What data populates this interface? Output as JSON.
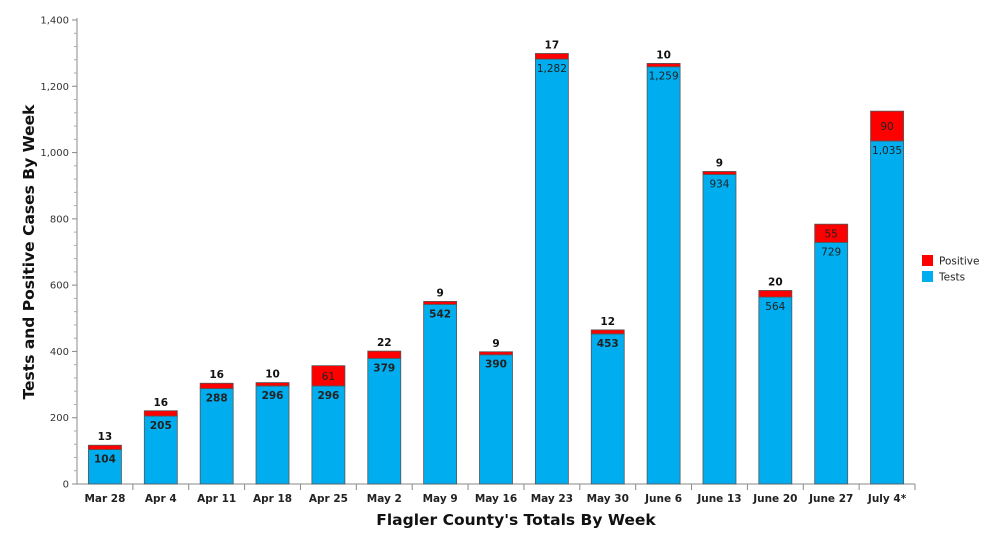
{
  "chart_data": {
    "type": "bar",
    "stacked": true,
    "title": "",
    "xlabel": "Flagler County's Totals By Week",
    "ylabel": "Tests and Positive Cases By Week",
    "ylim": [
      0,
      1400
    ],
    "yticks": [
      "0",
      "200",
      "400",
      "600",
      "800",
      "1,000",
      "1,200",
      "1,400"
    ],
    "ytick_values": [
      0,
      200,
      400,
      600,
      800,
      1000,
      1200,
      1400
    ],
    "categories": [
      "Mar 28",
      "Apr 4",
      "Apr 11",
      "Apr 18",
      "Apr 25",
      "May 2",
      "May 9",
      "May 16",
      "May 23",
      "May 30",
      "June 6",
      "June 13",
      "June 20",
      "June 27",
      "July 4*"
    ],
    "series": [
      {
        "name": "Tests",
        "color": "#00aeef",
        "values": [
          104,
          205,
          288,
          296,
          296,
          379,
          542,
          390,
          1282,
          453,
          1259,
          934,
          564,
          729,
          1035
        ],
        "labels": [
          "104",
          "205",
          "288",
          "296",
          "296",
          "379",
          "542",
          "390",
          "1,282",
          "453",
          "1,259",
          "934",
          "564",
          "729",
          "1,035"
        ]
      },
      {
        "name": "Positive",
        "color": "#ff0000",
        "values": [
          13,
          16,
          16,
          10,
          61,
          22,
          9,
          9,
          17,
          12,
          10,
          9,
          20,
          55,
          90
        ],
        "labels": [
          "13",
          "16",
          "16",
          "10",
          "61",
          "22",
          "9",
          "9",
          "17",
          "12",
          "10",
          "9",
          "20",
          "55",
          "90"
        ]
      }
    ],
    "grid": false,
    "legend": "right"
  }
}
